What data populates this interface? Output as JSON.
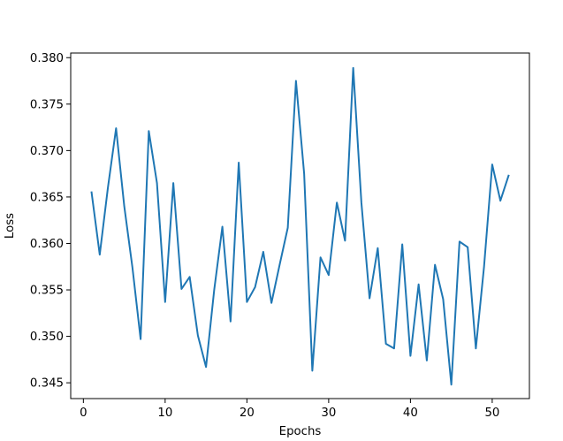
{
  "chart_data": {
    "type": "line",
    "title": "",
    "xlabel": "Epochs",
    "ylabel": "Loss",
    "xlim": [
      -1.55,
      54.55
    ],
    "ylim": [
      0.3433,
      0.3805
    ],
    "xticks": [
      0,
      10,
      20,
      30,
      40,
      50
    ],
    "yticks": [
      0.345,
      0.35,
      0.355,
      0.36,
      0.365,
      0.37,
      0.375,
      0.38
    ],
    "ytick_labels": [
      "0.345",
      "0.350",
      "0.355",
      "0.360",
      "0.365",
      "0.370",
      "0.375",
      "0.380"
    ],
    "grid": false,
    "legend": "none",
    "series": [
      {
        "color": "#1f77b4",
        "x": [
          1,
          2,
          3,
          4,
          5,
          6,
          7,
          8,
          9,
          10,
          11,
          12,
          13,
          14,
          15,
          16,
          17,
          18,
          19,
          20,
          21,
          22,
          23,
          24,
          25,
          26,
          27,
          28,
          29,
          30,
          31,
          32,
          33,
          34,
          35,
          36,
          37,
          38,
          39,
          40,
          41,
          42,
          43,
          44,
          45,
          46,
          47,
          48,
          49,
          50,
          51,
          52
        ],
        "values": [
          0.3655,
          0.3588,
          0.366,
          0.3724,
          0.364,
          0.3574,
          0.3497,
          0.3721,
          0.3665,
          0.3537,
          0.3665,
          0.3551,
          0.3564,
          0.3501,
          0.3467,
          0.355,
          0.3618,
          0.3516,
          0.3687,
          0.3537,
          0.3553,
          0.3591,
          0.3536,
          0.3577,
          0.3617,
          0.3775,
          0.3675,
          0.3463,
          0.3585,
          0.3566,
          0.3644,
          0.3603,
          0.3789,
          0.3644,
          0.3541,
          0.3595,
          0.3492,
          0.3487,
          0.3599,
          0.3479,
          0.3556,
          0.3474,
          0.3577,
          0.354,
          0.3448,
          0.3602,
          0.3596,
          0.3487,
          0.3575,
          0.3685,
          0.3646,
          0.3673
        ]
      }
    ]
  }
}
